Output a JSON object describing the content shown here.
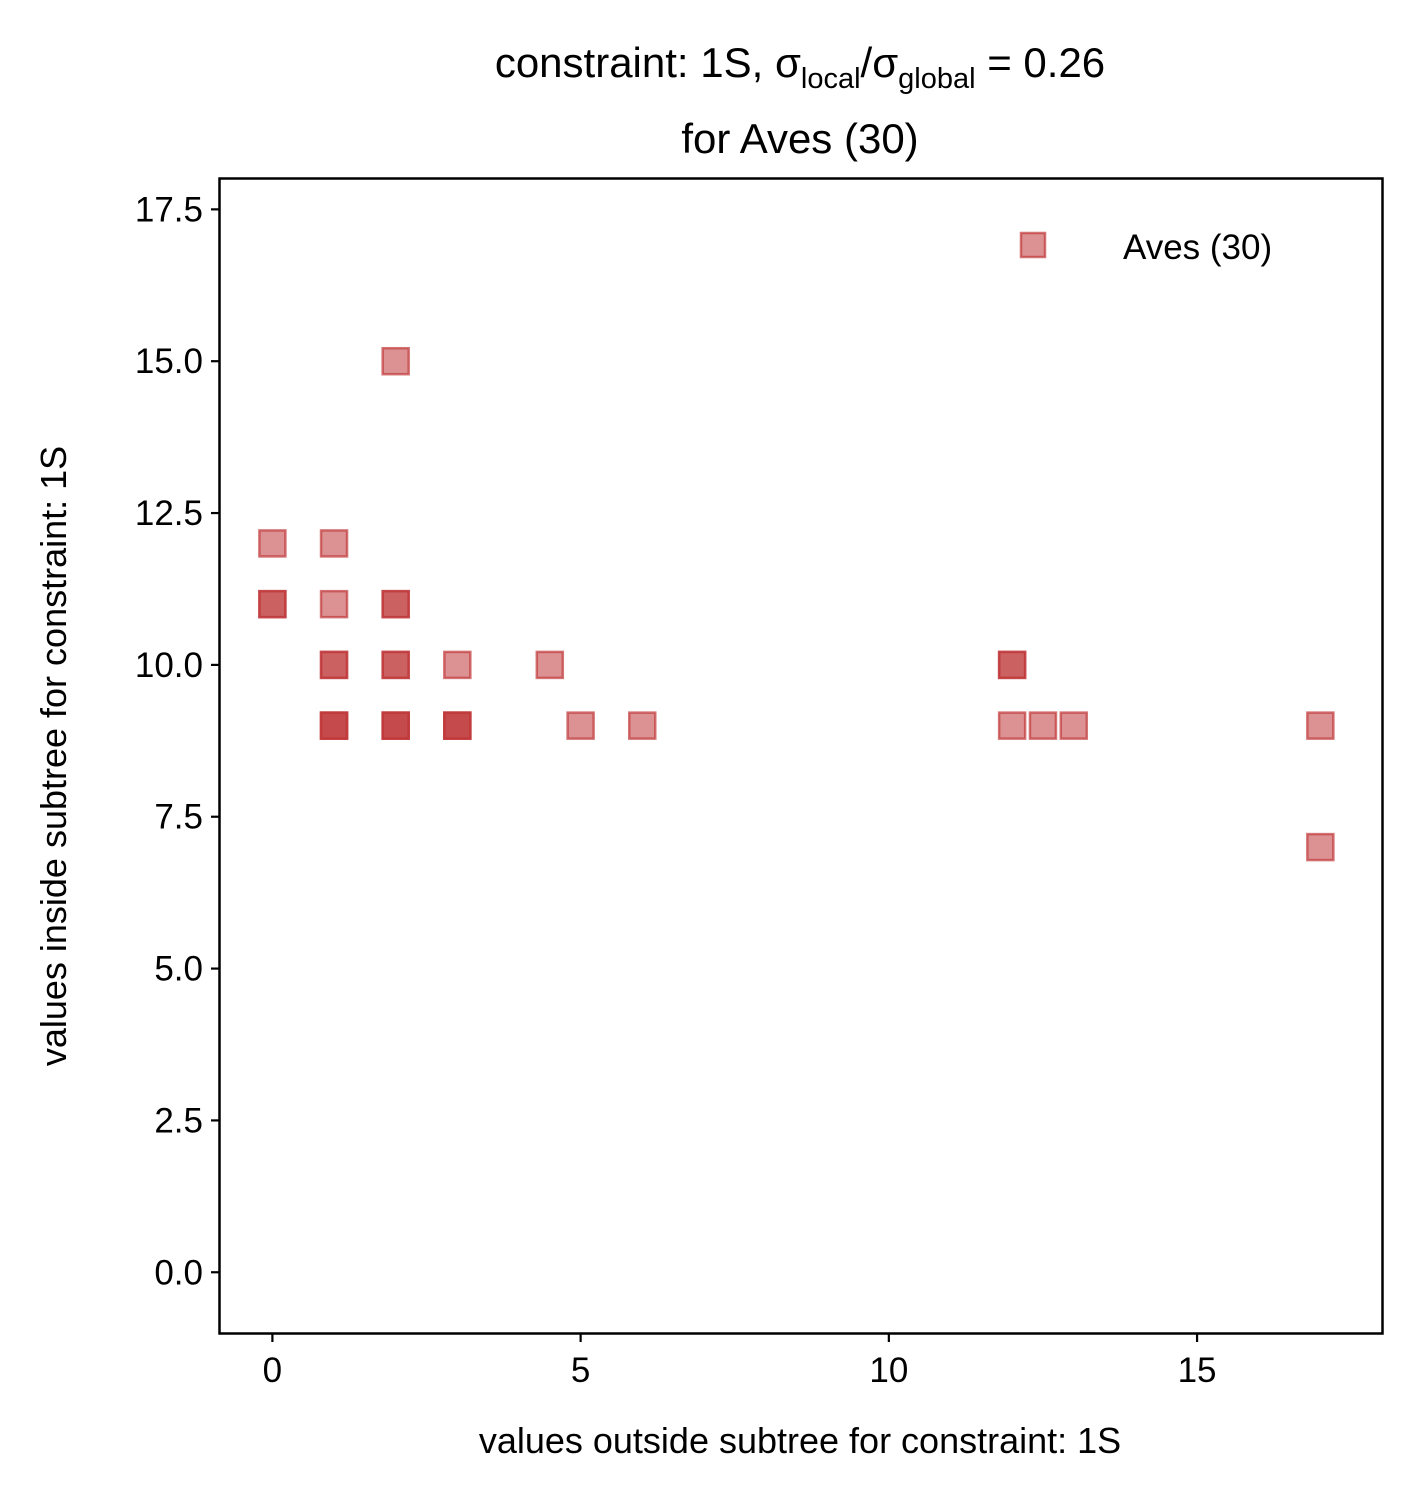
{
  "chart_data": {
    "type": "scatter",
    "title": {
      "line1_prefix": "constraint: 1S, σ",
      "sub_local": "local",
      "slash": "/σ",
      "sub_global": "global",
      "line1_suffix": " =  0.26",
      "line2": "for Aves (30)"
    },
    "xlabel": "values outside subtree for constraint: 1S",
    "ylabel": "values inside subtree for constraint: 1S",
    "xlim": [
      -0.85,
      18
    ],
    "ylim": [
      -1,
      18
    ],
    "xticks": [
      0,
      5,
      10,
      15
    ],
    "xtick_labels": [
      "0",
      "5",
      "10",
      "15"
    ],
    "yticks": [
      0,
      2.5,
      5,
      7.5,
      10,
      12.5,
      15,
      17.5
    ],
    "ytick_labels": [
      "0.0",
      "2.5",
      "5.0",
      "7.5",
      "10.0",
      "12.5",
      "15.0",
      "17.5"
    ],
    "legend": {
      "label": "Aves (30)",
      "position": "upper right"
    },
    "marker": "square",
    "color": "#c0393b",
    "grid": false,
    "series": [
      {
        "name": "Aves (30)",
        "x": [
          0,
          0,
          0,
          1,
          1,
          1,
          1,
          1,
          1,
          1,
          2,
          2,
          2,
          2,
          2,
          2,
          2,
          2,
          3,
          3,
          3,
          3,
          4.5,
          5,
          6,
          12,
          12,
          12,
          12.5,
          13,
          17,
          17
        ],
        "y": [
          12,
          11,
          11,
          12,
          11,
          10,
          10,
          9,
          9,
          9,
          15,
          11,
          11,
          10,
          10,
          9,
          9,
          9,
          10,
          9,
          9,
          9,
          10,
          9,
          9,
          10,
          10,
          9,
          9,
          9,
          9,
          7
        ]
      }
    ]
  }
}
